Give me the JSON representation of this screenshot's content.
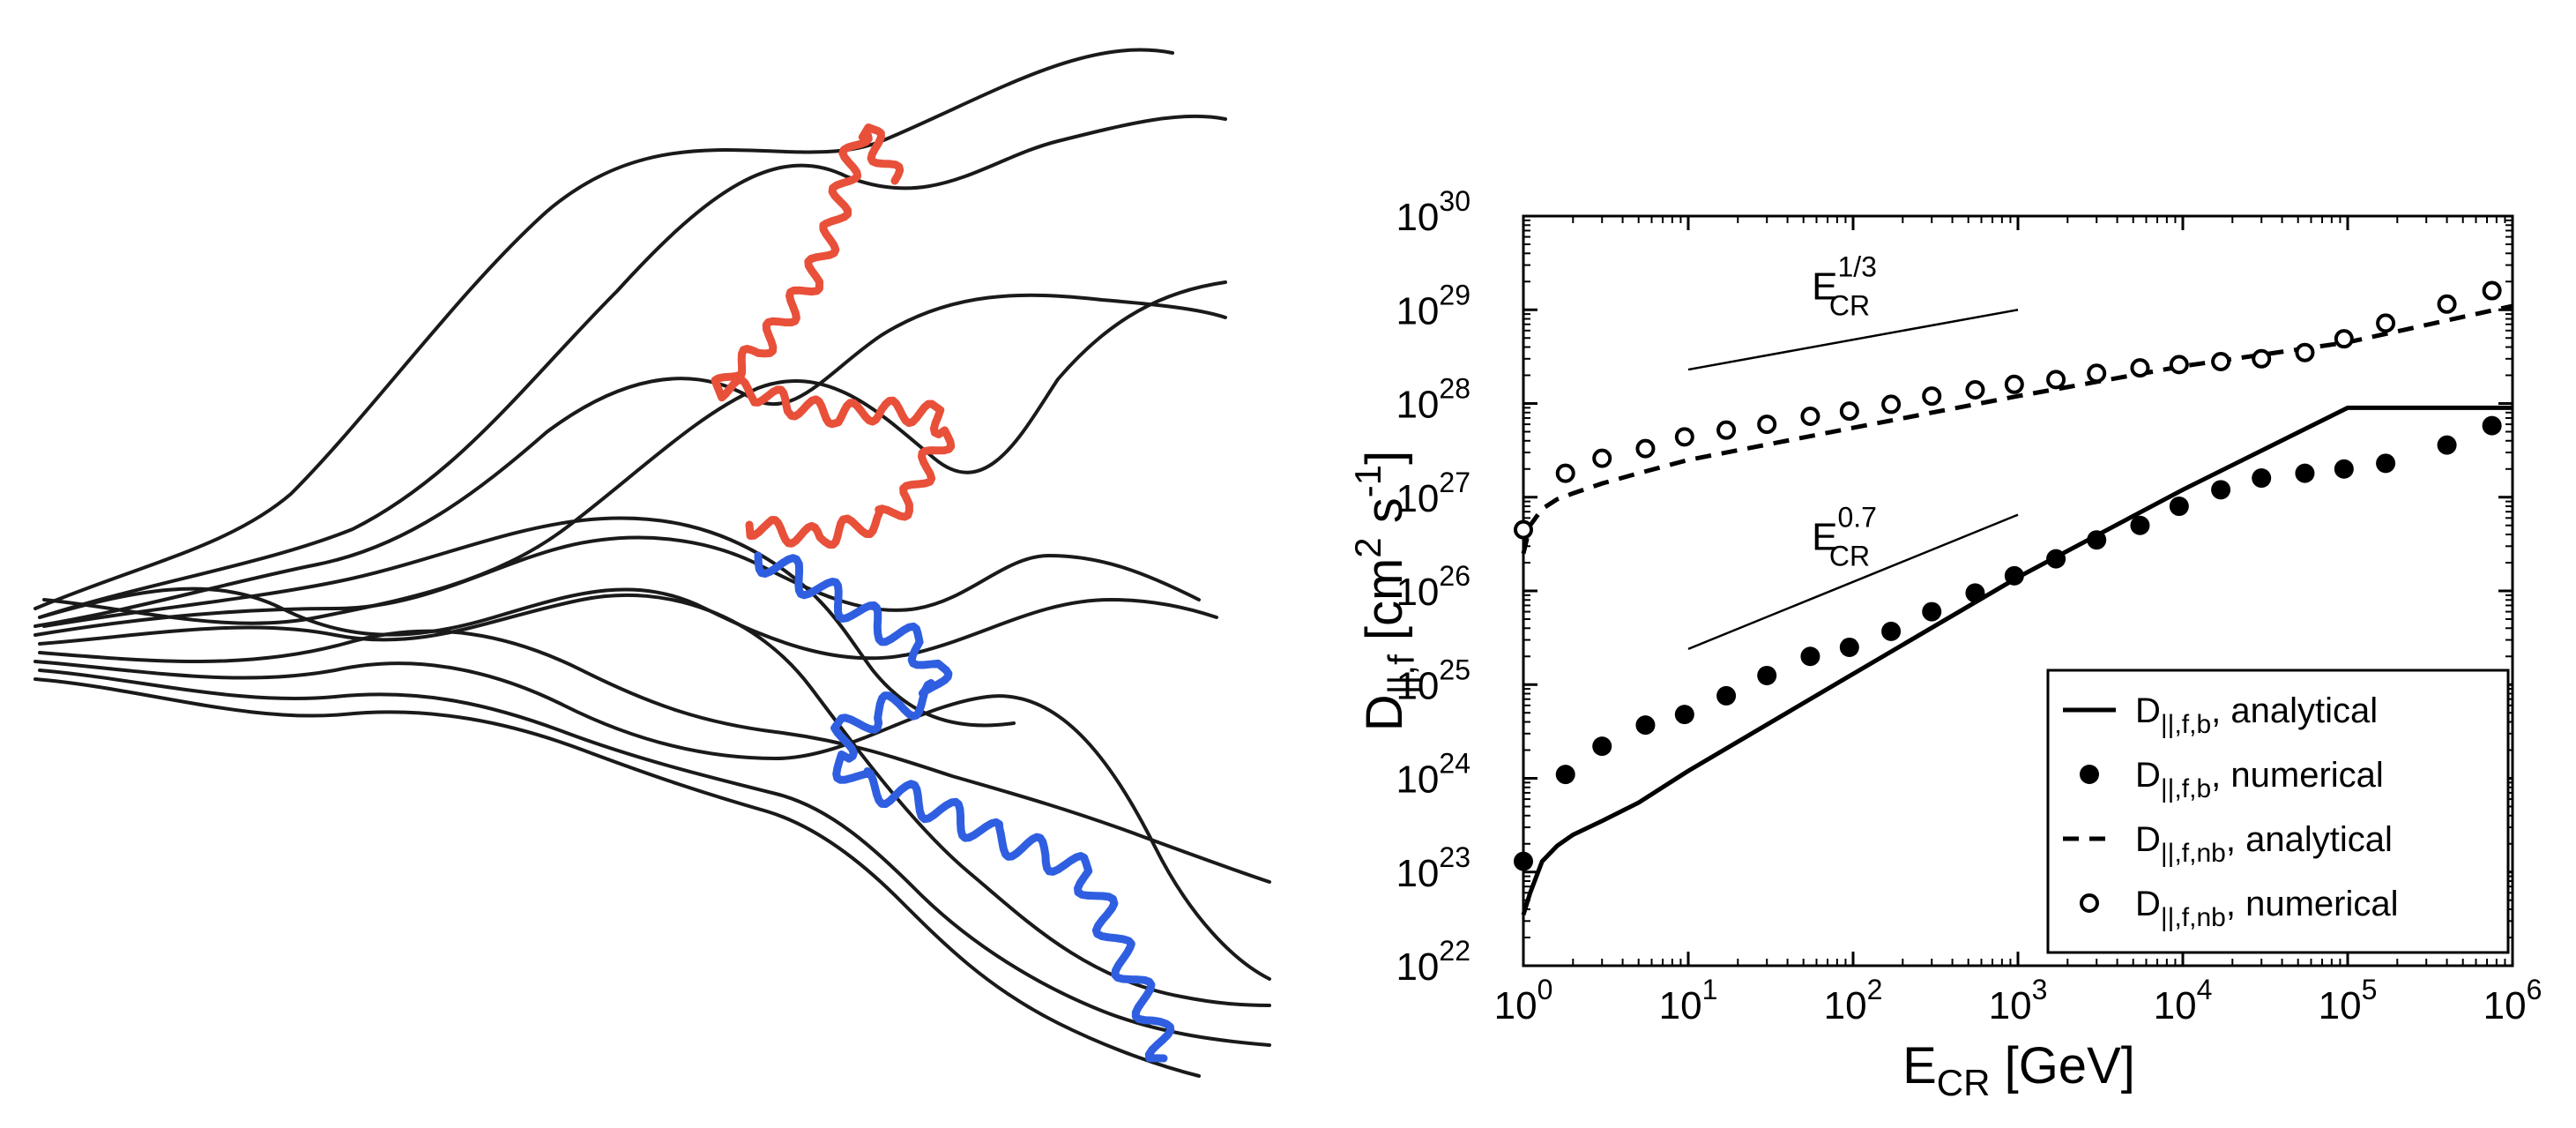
{
  "figure": {
    "left_panel": {
      "field_line_color": "#1a1a1a",
      "red_orbit_color": "#e8503a",
      "blue_orbit_color": "#2f5fe0"
    }
  },
  "chart_data": {
    "type": "scatter",
    "x_scale": "log",
    "y_scale": "log",
    "xlim": [
      1,
      1000000
    ],
    "ylim": [
      1e+22,
      1e+30
    ],
    "grid": false,
    "legend_position": "bottom-right",
    "xlabel": {
      "main": "E",
      "sub": "CR",
      "unit": " [GeV]"
    },
    "ylabel": {
      "main": "D",
      "sub": "||,f",
      "unit_open": " [cm",
      "sup1": "2",
      "mid": " s",
      "sup2": "-1",
      "unit_close": "]"
    },
    "x_ticks": [
      {
        "value": 1,
        "base": "10",
        "exp": "0"
      },
      {
        "value": 10,
        "base": "10",
        "exp": "1"
      },
      {
        "value": 100,
        "base": "10",
        "exp": "2"
      },
      {
        "value": 1000,
        "base": "10",
        "exp": "3"
      },
      {
        "value": 10000,
        "base": "10",
        "exp": "4"
      },
      {
        "value": 100000,
        "base": "10",
        "exp": "5"
      },
      {
        "value": 1000000,
        "base": "10",
        "exp": "6"
      }
    ],
    "y_ticks": [
      {
        "value": 1e+22,
        "base": "10",
        "exp": "22"
      },
      {
        "value": 1e+23,
        "base": "10",
        "exp": "23"
      },
      {
        "value": 1e+24,
        "base": "10",
        "exp": "24"
      },
      {
        "value": 1e+25,
        "base": "10",
        "exp": "25"
      },
      {
        "value": 1e+26,
        "base": "10",
        "exp": "26"
      },
      {
        "value": 1e+27,
        "base": "10",
        "exp": "27"
      },
      {
        "value": 1e+28,
        "base": "10",
        "exp": "28"
      },
      {
        "value": 1e+29,
        "base": "10",
        "exp": "29"
      },
      {
        "value": 1e+30,
        "base": "10",
        "exp": "30"
      }
    ],
    "series": [
      {
        "name": "D||,f,b, analytical",
        "style": "solid",
        "x": [
          1,
          1.1,
          1.3,
          1.6,
          2,
          3,
          5,
          10,
          100,
          1000,
          10000,
          100000,
          1000000
        ],
        "y": [
          3.5e+22,
          6e+22,
          1.3e+23,
          1.9e+23,
          2.5e+23,
          3.5e+23,
          5.5e+23,
          1.2e+24,
          1.3e+25,
          1.4e+26,
          1.2e+27,
          9e+27,
          9e+27
        ]
      },
      {
        "name": "D||,f,b, numerical",
        "style": "filled",
        "x": [
          1,
          1.8,
          3,
          5.5,
          9.5,
          17,
          30,
          55,
          95,
          170,
          300,
          550,
          950,
          1700,
          3000,
          5500,
          9500,
          17000,
          30000,
          55000,
          95000,
          170000,
          400000,
          750000
        ],
        "y": [
          1.3e+23,
          1.1e+24,
          2.2e+24,
          3.7e+24,
          4.8e+24,
          7.6e+24,
          1.25e+25,
          2e+25,
          2.5e+25,
          3.7e+25,
          6e+25,
          9.5e+25,
          1.45e+26,
          2.2e+26,
          3.5e+26,
          5e+26,
          8e+26,
          1.2e+27,
          1.6e+27,
          1.8e+27,
          2e+27,
          2.3e+27,
          3.6e+27,
          5.8e+27
        ]
      },
      {
        "name": "D||,f,nb, analytical",
        "style": "dashed",
        "x": [
          1,
          1.1,
          1.3,
          1.6,
          2,
          3,
          5,
          10,
          100,
          1000,
          10000,
          100000,
          1000000
        ],
        "y": [
          2.5e+26,
          5e+26,
          7.5e+26,
          9.5e+26,
          1.1e+27,
          1.4e+27,
          1.8e+27,
          2.5e+27,
          5.5e+27,
          1.2e+28,
          2.5e+28,
          4.5e+28,
          1.1e+29
        ]
      },
      {
        "name": "D||,f,nb, numerical",
        "style": "open",
        "x": [
          1,
          1.8,
          3,
          5.5,
          9.5,
          17,
          30,
          55,
          95,
          170,
          300,
          550,
          950,
          1700,
          3000,
          5500,
          9500,
          17000,
          30000,
          55000,
          95000,
          170000,
          400000,
          750000
        ],
        "y": [
          4.5e+26,
          1.8e+27,
          2.6e+27,
          3.3e+27,
          4.4e+27,
          5.2e+27,
          6e+27,
          7.3e+27,
          8.3e+27,
          9.8e+27,
          1.2e+28,
          1.4e+28,
          1.6e+28,
          1.8e+28,
          2.1e+28,
          2.4e+28,
          2.6e+28,
          2.8e+28,
          3e+28,
          3.5e+28,
          4.9e+28,
          7.2e+28,
          1.15e+29,
          1.6e+29
        ]
      }
    ],
    "reference_lines": [
      {
        "x": [
          10,
          1000
        ],
        "y": [
          2.3e+28,
          1e+29
        ],
        "base": "E",
        "sub": "CR",
        "sup": "1/3"
      },
      {
        "x": [
          10,
          1000
        ],
        "y": [
          2.4e+25,
          6.5e+26
        ],
        "base": "E",
        "sub": "CR",
        "sup": "0.7"
      }
    ],
    "legend": [
      {
        "style": "solid",
        "main": "D",
        "sub": "||,f,b",
        "text": ",  analytical"
      },
      {
        "style": "filled",
        "main": "D",
        "sub": "||,f,b",
        "text": ",  numerical"
      },
      {
        "style": "dashed",
        "main": "D",
        "sub": "||,f,nb",
        "text": ", analytical"
      },
      {
        "style": "open",
        "main": "D",
        "sub": "||,f,nb",
        "text": ", numerical"
      }
    ]
  }
}
